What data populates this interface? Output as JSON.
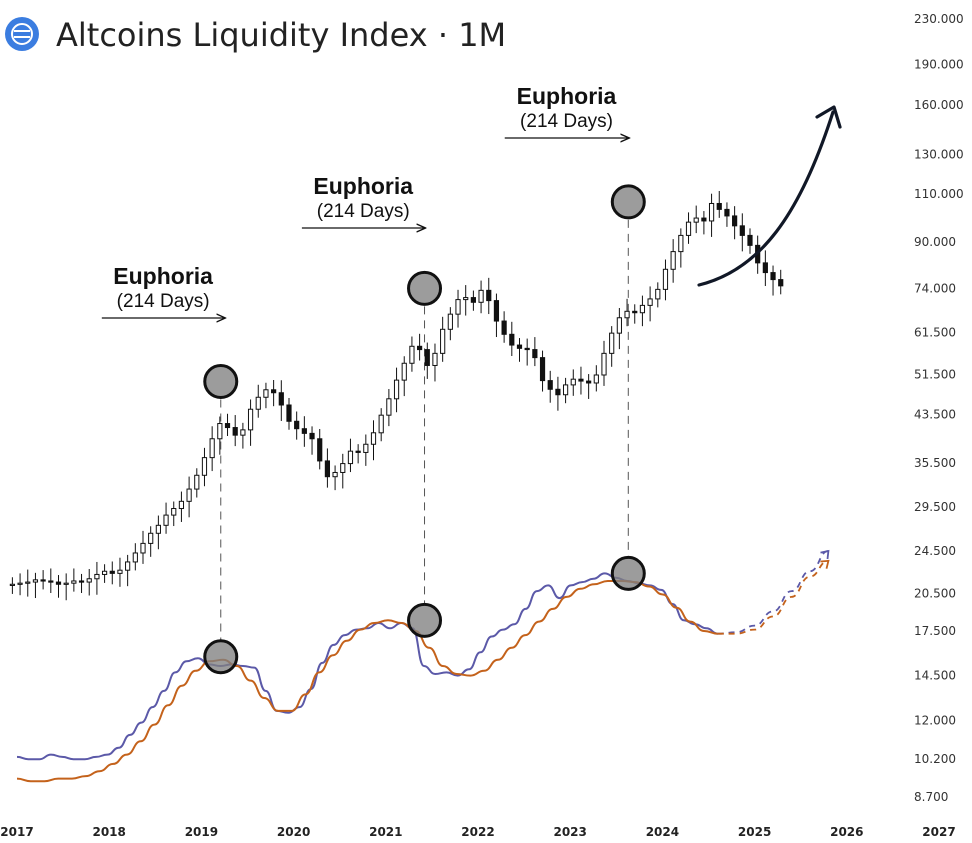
{
  "chart_data": {
    "type": "candlestick",
    "title": "Altcoins Liquidity Index · 1M",
    "y_scale": "log",
    "ylim": [
      8000,
      240000
    ],
    "y_ticks": [
      "230.000",
      "190.000",
      "160.000",
      "130.000",
      "110.000",
      "90.000",
      "74.000",
      "61.500",
      "51.500",
      "43.500",
      "35.500",
      "29.500",
      "24.500",
      "20.500",
      "17.500",
      "14.500",
      "12.000",
      "10.200",
      "8.700"
    ],
    "x_ticks": [
      "2017",
      "2018",
      "2019",
      "2020",
      "2021",
      "2022",
      "2023",
      "2024",
      "2025",
      "2026",
      "2027"
    ],
    "annotations": [
      {
        "title": "Euphoria",
        "subtitle": "(214 Days)",
        "x_start": 2017.92,
        "x_end": 2019.25
      },
      {
        "title": "Euphoria",
        "subtitle": "(214 Days)",
        "x_start": 2020.09,
        "x_end": 2021.42
      },
      {
        "title": "Euphoria",
        "subtitle": "(214 Days)",
        "x_start": 2022.29,
        "x_end": 2023.63
      }
    ],
    "peaks": [
      {
        "x": 2019.21,
        "price": 50000,
        "indicator": 15700
      },
      {
        "x": 2021.42,
        "price": 74000,
        "indicator": 18300
      },
      {
        "x": 2023.63,
        "price": 106500,
        "indicator": 22300
      }
    ],
    "candles_close": [
      21300,
      21400,
      21500,
      21700,
      21600,
      21500,
      21300,
      21400,
      21600,
      21500,
      21800,
      22200,
      22500,
      22300,
      22600,
      23400,
      24300,
      25300,
      26400,
      27300,
      28500,
      29300,
      30200,
      31800,
      33700,
      36300,
      39300,
      41900,
      41200,
      39900,
      40800,
      44500,
      46800,
      48300,
      47700,
      45300,
      42300,
      41000,
      40200,
      39300,
      35800,
      33500,
      34100,
      35400,
      37300,
      37100,
      38400,
      40300,
      43400,
      46500,
      50300,
      54000,
      58000,
      57200,
      53500,
      56300,
      62300,
      66400,
      70600,
      71200,
      69800,
      73400,
      70300,
      64500,
      61000,
      58300,
      57500,
      57200,
      55300,
      50200,
      48400,
      47300,
      49300,
      50500,
      50100,
      49700,
      51400,
      56300,
      61300,
      65400,
      67200,
      66800,
      68900,
      70800,
      73700,
      80200,
      86400,
      92500,
      97800,
      99500,
      98300,
      105800,
      103200,
      100400,
      96300,
      92500,
      88700,
      82400,
      79100,
      76800,
      74800
    ],
    "series": [
      {
        "name": "",
        "color": "#5b59a8",
        "values": [
          10300,
          10200,
          10200,
          10400,
          10300,
          10200,
          10200,
          10300,
          10400,
          10700,
          11300,
          11900,
          12700,
          13600,
          14700,
          15400,
          15600,
          15200,
          15100,
          15200,
          15100,
          15000,
          13600,
          12500,
          12400,
          12700,
          13700,
          15300,
          16500,
          17200,
          17600,
          17700,
          18100,
          17700,
          18100,
          17700,
          15100,
          14600,
          14700,
          14500,
          14900,
          16000,
          17100,
          17600,
          18000,
          19200,
          20700,
          21200,
          20100,
          21200,
          21500,
          21800,
          22300,
          21900,
          21600,
          21400,
          21200,
          20800,
          19600,
          18300,
          18000,
          17700,
          17300
        ]
      },
      {
        "name": "",
        "color": "#c4621b",
        "values": [
          9400,
          9300,
          9300,
          9400,
          9400,
          9500,
          9700,
          10000,
          10400,
          11000,
          11800,
          12800,
          13900,
          14800,
          15400,
          15500,
          15100,
          14200,
          13200,
          12500,
          12500,
          13400,
          14700,
          15800,
          16800,
          17600,
          18100,
          18300,
          18100,
          17500,
          16300,
          15100,
          14600,
          14500,
          14800,
          15500,
          16300,
          17200,
          18200,
          19200,
          20200,
          20900,
          21300,
          21600,
          21600,
          21500,
          21100,
          20400,
          19300,
          18200,
          17500,
          17300
        ]
      },
      {
        "name": "",
        "color": "#5b59a8",
        "projection": true,
        "values": [
          17300,
          17400,
          17900,
          19000,
          20700,
          22500,
          24500
        ]
      },
      {
        "name": "",
        "color": "#c4621b",
        "projection": true,
        "values": [
          17300,
          17300,
          17600,
          18600,
          20200,
          22000,
          23500
        ]
      }
    ]
  },
  "header": {
    "logo_icon": "liquidity-logo-icon",
    "brand_color": "#3b7de0"
  }
}
